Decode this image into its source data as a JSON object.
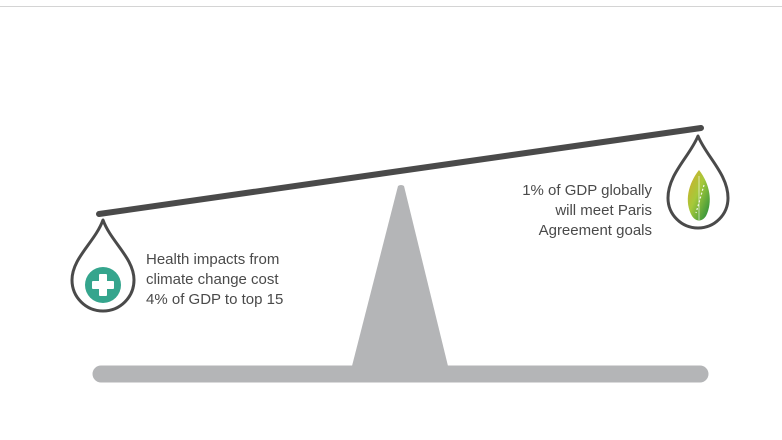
{
  "left_pan": {
    "icon": "medical-cross-icon",
    "lines": [
      "Health impacts from",
      "climate change cost",
      "4% of GDP to top 15"
    ]
  },
  "right_pan": {
    "icon": "leaf-icon",
    "lines": [
      "1% of GDP globally",
      "will meet Paris",
      "Agreement goals"
    ]
  },
  "colors": {
    "beam": "#4a4a4a",
    "fulcrum": "#b4b5b7",
    "base": "#b4b5b7",
    "drop_outline": "#4a4a4a",
    "cross_badge": "#35a58d",
    "leaf_dark": "#1e8a3c",
    "leaf_light": "#a6c93a",
    "text": "#4a4a4a"
  }
}
